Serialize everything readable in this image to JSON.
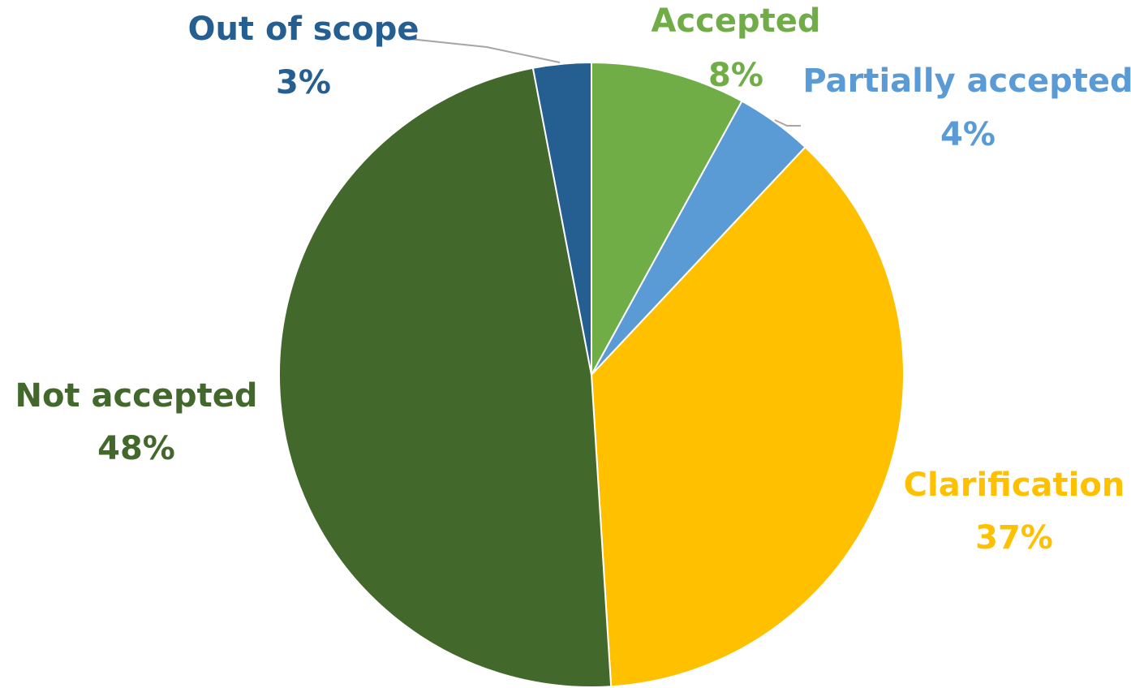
{
  "chart_data": {
    "type": "pie",
    "categories": [
      "Accepted",
      "Partially accepted",
      "Clarification",
      "Not accepted",
      "Out of scope"
    ],
    "values": [
      8,
      4,
      37,
      48,
      3
    ],
    "value_labels": [
      "8%",
      "4%",
      "37%",
      "48%",
      "3%"
    ],
    "colors": [
      "#70ad47",
      "#5b9bd5",
      "#ffc000",
      "#43682b",
      "#255e91"
    ]
  }
}
